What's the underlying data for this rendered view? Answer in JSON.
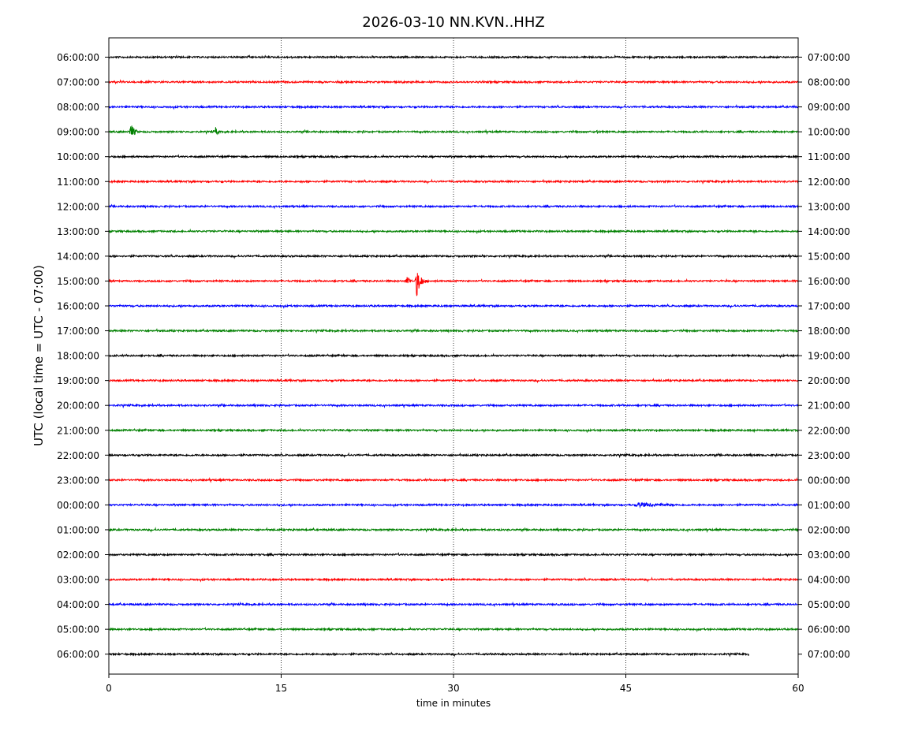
{
  "chart_data": {
    "type": "line",
    "title": "2026-03-10 NN.KVN..HHZ",
    "xlabel": "time in minutes",
    "ylabel": "UTC (local time = UTC - 07:00)",
    "xlim": [
      0,
      60
    ],
    "x_ticks": [
      0,
      15,
      30,
      45,
      60
    ],
    "x_tick_labels": [
      "0",
      "15",
      "30",
      "45",
      "60"
    ],
    "grid": "vertical dotted at 15, 30, 45",
    "legend": "none",
    "colors": [
      "#000000",
      "#ff0000",
      "#0000ff",
      "#008000"
    ],
    "rows": [
      {
        "left_label": "06:00:00",
        "right_label": "07:00:00",
        "color": "#000000",
        "end_minute": 60,
        "events": []
      },
      {
        "left_label": "07:00:00",
        "right_label": "08:00:00",
        "color": "#ff0000",
        "end_minute": 60,
        "events": []
      },
      {
        "left_label": "08:00:00",
        "right_label": "09:00:00",
        "color": "#0000ff",
        "end_minute": 60,
        "events": []
      },
      {
        "left_label": "09:00:00",
        "right_label": "10:00:00",
        "color": "#008000",
        "end_minute": 60,
        "events": [
          {
            "minute": 1.9,
            "amplitude": 12,
            "duration": 0.9
          },
          {
            "minute": 9.3,
            "amplitude": 6,
            "duration": 0.8
          },
          {
            "minute": 42.5,
            "amplitude": 3,
            "duration": 0.5
          }
        ]
      },
      {
        "left_label": "10:00:00",
        "right_label": "11:00:00",
        "color": "#000000",
        "end_minute": 60,
        "events": []
      },
      {
        "left_label": "11:00:00",
        "right_label": "12:00:00",
        "color": "#ff0000",
        "end_minute": 60,
        "events": []
      },
      {
        "left_label": "12:00:00",
        "right_label": "13:00:00",
        "color": "#0000ff",
        "end_minute": 60,
        "events": []
      },
      {
        "left_label": "13:00:00",
        "right_label": "14:00:00",
        "color": "#008000",
        "end_minute": 60,
        "events": []
      },
      {
        "left_label": "14:00:00",
        "right_label": "15:00:00",
        "color": "#000000",
        "end_minute": 60,
        "events": [
          {
            "minute": 32.5,
            "amplitude": 3,
            "duration": 0.4
          }
        ]
      },
      {
        "left_label": "15:00:00",
        "right_label": "16:00:00",
        "color": "#ff0000",
        "end_minute": 60,
        "events": [
          {
            "minute": 26.0,
            "amplitude": 9,
            "duration": 0.6
          },
          {
            "minute": 26.8,
            "amplitude": 20,
            "duration": 1.0
          }
        ]
      },
      {
        "left_label": "16:00:00",
        "right_label": "17:00:00",
        "color": "#0000ff",
        "end_minute": 60,
        "events": []
      },
      {
        "left_label": "17:00:00",
        "right_label": "18:00:00",
        "color": "#008000",
        "end_minute": 60,
        "events": []
      },
      {
        "left_label": "18:00:00",
        "right_label": "19:00:00",
        "color": "#000000",
        "end_minute": 60,
        "events": []
      },
      {
        "left_label": "19:00:00",
        "right_label": "20:00:00",
        "color": "#ff0000",
        "end_minute": 60,
        "events": []
      },
      {
        "left_label": "20:00:00",
        "right_label": "21:00:00",
        "color": "#0000ff",
        "end_minute": 60,
        "events": []
      },
      {
        "left_label": "21:00:00",
        "right_label": "22:00:00",
        "color": "#008000",
        "end_minute": 60,
        "events": []
      },
      {
        "left_label": "22:00:00",
        "right_label": "23:00:00",
        "color": "#000000",
        "end_minute": 60,
        "events": []
      },
      {
        "left_label": "23:00:00",
        "right_label": "00:00:00",
        "color": "#ff0000",
        "end_minute": 60,
        "events": []
      },
      {
        "left_label": "00:00:00",
        "right_label": "01:00:00",
        "color": "#0000ff",
        "end_minute": 60,
        "events": [
          {
            "minute": 46.0,
            "amplitude": 3.5,
            "duration": 9.0
          }
        ]
      },
      {
        "left_label": "01:00:00",
        "right_label": "02:00:00",
        "color": "#008000",
        "end_minute": 60,
        "events": []
      },
      {
        "left_label": "02:00:00",
        "right_label": "03:00:00",
        "color": "#000000",
        "end_minute": 60,
        "events": []
      },
      {
        "left_label": "03:00:00",
        "right_label": "04:00:00",
        "color": "#ff0000",
        "end_minute": 60,
        "events": []
      },
      {
        "left_label": "04:00:00",
        "right_label": "05:00:00",
        "color": "#0000ff",
        "end_minute": 60,
        "events": []
      },
      {
        "left_label": "05:00:00",
        "right_label": "06:00:00",
        "color": "#008000",
        "end_minute": 60,
        "events": []
      },
      {
        "left_label": "06:00:00",
        "right_label": "07:00:00",
        "color": "#000000",
        "end_minute": 55.7,
        "events": []
      }
    ]
  }
}
